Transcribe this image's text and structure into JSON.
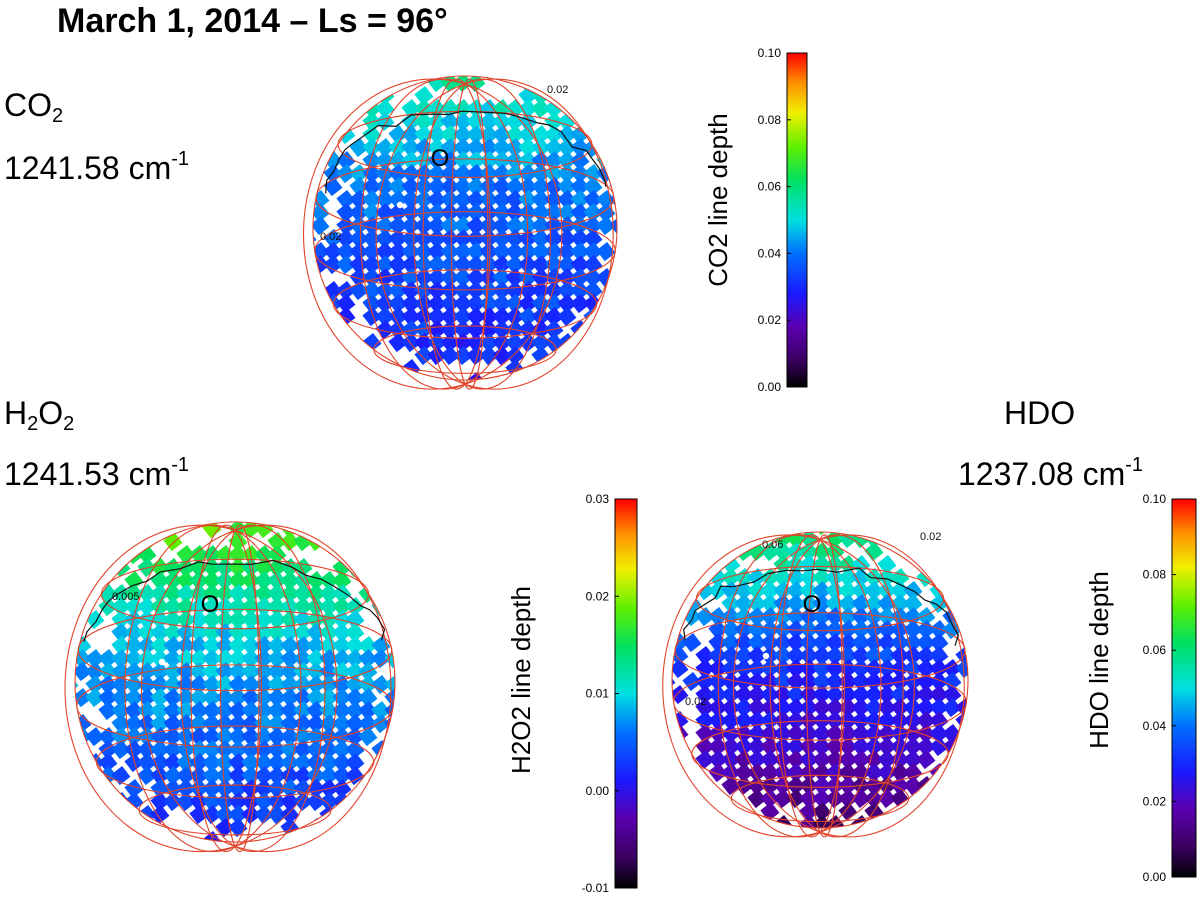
{
  "title": "March 1, 2014 – Ls = 96°",
  "chart_data": [
    {
      "type": "heatmap",
      "molecule": "CO",
      "molecule_sub": "2",
      "wavenumber": "1241.58 cm",
      "wavenumber_sup": "-1",
      "colorbar_label": "CO2 line depth",
      "colorbar_range": [
        0.0,
        0.1
      ],
      "colorbar_ticks": [
        "0.00",
        "0.02",
        "0.04",
        "0.06",
        "0.08",
        "0.10"
      ],
      "contour_labels": [
        "0.02",
        "0.02"
      ],
      "marker_label": "O",
      "map_values": {
        "north": 0.055,
        "mid": 0.04,
        "south": 0.028
      }
    },
    {
      "type": "heatmap",
      "molecule": "H",
      "molecule_sub": "2",
      "molecule2": "O",
      "molecule2_sub": "2",
      "wavenumber": "1241.53 cm",
      "wavenumber_sup": "-1",
      "colorbar_label": "H2O2 line depth",
      "colorbar_range": [
        -0.01,
        0.03
      ],
      "colorbar_ticks": [
        "-0.01",
        "0.00",
        "0.01",
        "0.02",
        "0.03"
      ],
      "contour_labels": [
        "0.005"
      ],
      "marker_label": "O",
      "map_values": {
        "north": 0.018,
        "mid": 0.009,
        "south": 0.002
      }
    },
    {
      "type": "heatmap",
      "molecule": "HDO",
      "wavenumber": "1237.08 cm",
      "wavenumber_sup": "-1",
      "colorbar_label": "HDO line depth",
      "colorbar_range": [
        0.0,
        0.1
      ],
      "colorbar_ticks": [
        "0.00",
        "0.02",
        "0.04",
        "0.06",
        "0.08",
        "0.10"
      ],
      "contour_labels": [
        "0.02",
        "0.06",
        "0.02"
      ],
      "marker_label": "O",
      "map_values": {
        "north": 0.06,
        "mid": 0.035,
        "south": 0.01
      }
    }
  ]
}
